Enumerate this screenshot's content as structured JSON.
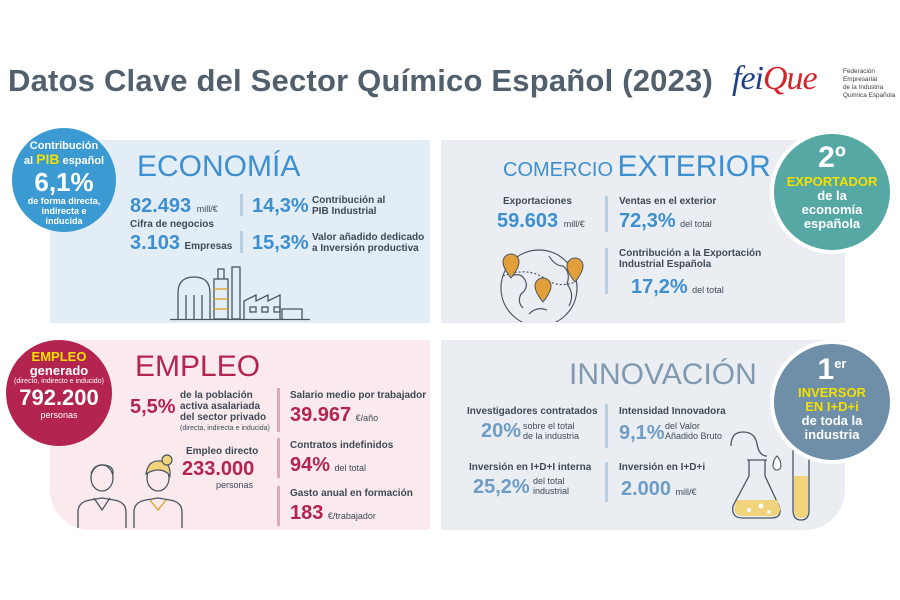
{
  "title": "Datos Clave del Sector Químico Español (2023)",
  "logo": {
    "word_a": "fei",
    "word_b": "Que",
    "sub1": "Federación Empresarial",
    "sub2": "de la Industria",
    "sub3": "Química Española"
  },
  "economia": {
    "heading": "ECONOMÍA",
    "circle": {
      "l1": "Contribución",
      "l2a": "al",
      "l2b": "PIB",
      "l2c": "español",
      "value": "6,1%",
      "l3": "de forma directa,",
      "l4": "indirecta e",
      "l5": "inducida"
    },
    "cifra_value": "82.493",
    "cifra_unit": "mill/€",
    "cifra_label": "Cifra de negocios",
    "empresas_value": "3.103",
    "empresas_label": "Empresas",
    "pib_ind_value": "14,3%",
    "pib_ind_l1": "Contribución al",
    "pib_ind_l2": "PIB Industrial",
    "vab_value": "15,3%",
    "vab_l1": "Valor añadido dedicado",
    "vab_l2": "a Inversión productiva"
  },
  "comercio": {
    "heading_a": "COMERCIO",
    "heading_b": "EXTERIOR",
    "exp_label": "Exportaciones",
    "exp_value": "59.603",
    "exp_unit": "mill/€",
    "ventas_label": "Ventas en el exterior",
    "ventas_value": "72,3%",
    "ventas_unit": "del total",
    "contrib_l1": "Contribución a la Exportación",
    "contrib_l2": "Industrial Española",
    "contrib_value": "17,2%",
    "contrib_unit": "del total",
    "circle": {
      "rank": "2º",
      "l1": "EXPORTADOR",
      "l2": "de la",
      "l3": "economía",
      "l4": "española"
    }
  },
  "empleo": {
    "heading": "EMPLEO",
    "circle": {
      "l1": "EMPLEO",
      "l2": "generado",
      "l3": "(directo, indirecto e inducido)",
      "value": "792.200",
      "l4": "personas"
    },
    "pct_value": "5,5%",
    "pct_l1": "de la población",
    "pct_l2": "activa asalariada",
    "pct_l3": "del sector privado",
    "pct_l4": "(directa, indirecta e inducida)",
    "directo_label": "Empleo directo",
    "directo_value": "233.000",
    "directo_unit": "personas",
    "salario_label": "Salario medio por trabajador",
    "salario_value": "39.967",
    "salario_unit": "€/año",
    "contratos_label": "Contratos indefinidos",
    "contratos_value": "94%",
    "contratos_unit": "del total",
    "gasto_label": "Gasto anual en formación",
    "gasto_value": "183",
    "gasto_unit": "€/trabajador"
  },
  "innovacion": {
    "heading": "INNOVACIÓN",
    "invest_label": "Investigadores contratados",
    "invest_value": "20%",
    "invest_l1": "sobre el total",
    "invest_l2": "de la industria",
    "intens_label": "Intensidad Innovadora",
    "intens_value": "9,1%",
    "intens_l1": "del Valor",
    "intens_l2": "Añadido Bruto",
    "interna_label": "Inversión en I+D+I interna",
    "interna_value": "25,2%",
    "interna_l1": "del total",
    "interna_l2": "industrial",
    "idi_label": "Inversión en I+D+i",
    "idi_value": "2.000",
    "idi_unit": "mill/€",
    "circle": {
      "rank": "1",
      "sup": "er",
      "l1": "INVERSOR",
      "l2": "EN I+D+i",
      "l3": "de toda la",
      "l4": "industria"
    }
  },
  "colors": {
    "blue": "#3d8fcf",
    "crimson": "#b3254f",
    "teal": "#55a8a3",
    "slate": "#6f8ea8",
    "yellow": "#f3e000"
  }
}
